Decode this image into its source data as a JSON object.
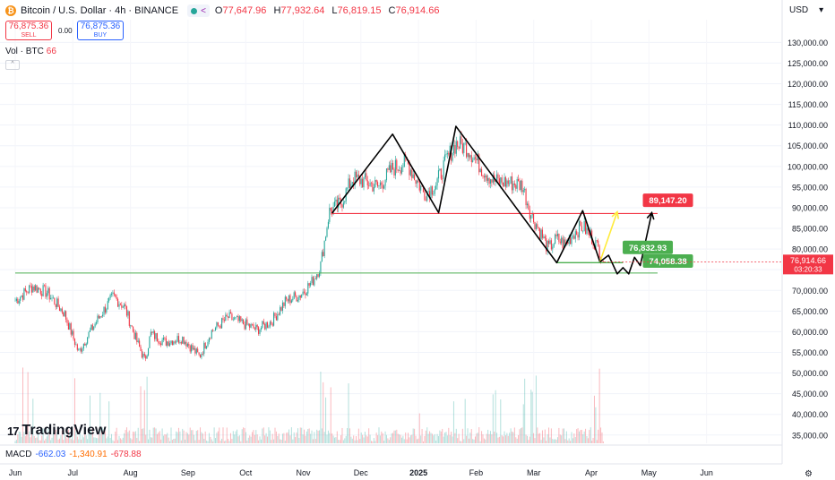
{
  "header": {
    "logo_glyph": "₿",
    "title": "Bitcoin / U.S. Dollar · 4h · BINANCE",
    "share_glyph": "<",
    "ohlc": [
      {
        "k": "O",
        "v": "77,647.96"
      },
      {
        "k": "H",
        "v": "77,932.64"
      },
      {
        "k": "L",
        "v": "76,819.15"
      },
      {
        "k": "C",
        "v": "76,914.66"
      }
    ]
  },
  "trade": {
    "sell_price": "76,875.36",
    "sell_label": "SELL",
    "spread": "0.00",
    "buy_price": "76,875.36",
    "buy_label": "BUY"
  },
  "volume_legend": {
    "label": "Vol · BTC",
    "value": "66",
    "collapse_glyph": "^"
  },
  "currency": {
    "label": "USD",
    "menu_glyph": "▾"
  },
  "macd": {
    "label": "MACD",
    "macd": "-662.03",
    "signal": "-1,340.91",
    "hist": "-678.88"
  },
  "brand": {
    "mark": "17",
    "name": "TradingView"
  },
  "settings_glyph": "⚙",
  "colors": {
    "up": "#26a69a",
    "down": "#f23645",
    "resistance": "#f23645",
    "support": "#4caf50",
    "pattern": "#000000",
    "projection": "#ffeb3b"
  },
  "chart_data": {
    "type": "candlestick",
    "symbol": "BTCUSD",
    "interval": "4h",
    "ylim": [
      33000,
      135500
    ],
    "yticks": [
      "130,000.00",
      "125,000.00",
      "120,000.00",
      "115,000.00",
      "110,000.00",
      "105,000.00",
      "100,000.00",
      "95,000.00",
      "90,000.00",
      "85,000.00",
      "80,000.00",
      "75,000.00",
      "70,000.00",
      "65,000.00",
      "60,000.00",
      "55,000.00",
      "50,000.00",
      "45,000.00",
      "40,000.00",
      "35,000.00"
    ],
    "ytick_values": [
      130000,
      125000,
      120000,
      115000,
      110000,
      105000,
      100000,
      95000,
      90000,
      85000,
      80000,
      75000,
      70000,
      65000,
      60000,
      55000,
      50000,
      45000,
      40000,
      35000
    ],
    "xlim": [
      0,
      13.5
    ],
    "xticks": [
      {
        "label": "Jun",
        "v": 0
      },
      {
        "label": "Jul",
        "v": 1
      },
      {
        "label": "Aug",
        "v": 2
      },
      {
        "label": "Sep",
        "v": 3
      },
      {
        "label": "Oct",
        "v": 4
      },
      {
        "label": "Nov",
        "v": 5
      },
      {
        "label": "Dec",
        "v": 6
      },
      {
        "label": "2025",
        "v": 7
      },
      {
        "label": "Feb",
        "v": 8
      },
      {
        "label": "Mar",
        "v": 9
      },
      {
        "label": "Apr",
        "v": 10
      },
      {
        "label": "May",
        "v": 11
      },
      {
        "label": "Jun",
        "v": 12
      }
    ],
    "anchors": [
      [
        0,
        67500
      ],
      [
        0.3,
        71000
      ],
      [
        0.55,
        69500
      ],
      [
        0.85,
        64500
      ],
      [
        1.1,
        55000
      ],
      [
        1.3,
        60000
      ],
      [
        1.5,
        64500
      ],
      [
        1.7,
        68500
      ],
      [
        1.9,
        66000
      ],
      [
        2.1,
        58000
      ],
      [
        2.25,
        53000
      ],
      [
        2.35,
        59500
      ],
      [
        2.6,
        57500
      ],
      [
        2.9,
        58500
      ],
      [
        3.2,
        54000
      ],
      [
        3.4,
        60000
      ],
      [
        3.7,
        63500
      ],
      [
        3.95,
        62000
      ],
      [
        4.2,
        60500
      ],
      [
        4.45,
        62500
      ],
      [
        4.7,
        67500
      ],
      [
        4.95,
        69000
      ],
      [
        5.15,
        72000
      ],
      [
        5.3,
        76000
      ],
      [
        5.45,
        89000
      ],
      [
        5.65,
        91000
      ],
      [
        5.85,
        97000
      ],
      [
        6.05,
        96500
      ],
      [
        6.3,
        95000
      ],
      [
        6.55,
        99500
      ],
      [
        6.8,
        101000
      ],
      [
        6.95,
        97000
      ],
      [
        7.1,
        93500
      ],
      [
        7.3,
        95500
      ],
      [
        7.5,
        102000
      ],
      [
        7.65,
        105500
      ],
      [
        7.85,
        104500
      ],
      [
        8.1,
        99500
      ],
      [
        8.3,
        96500
      ],
      [
        8.6,
        96000
      ],
      [
        8.8,
        95500
      ],
      [
        8.95,
        88500
      ],
      [
        9.1,
        84500
      ],
      [
        9.25,
        80000
      ],
      [
        9.4,
        82500
      ],
      [
        9.55,
        81000
      ],
      [
        9.7,
        84000
      ],
      [
        9.85,
        85500
      ],
      [
        10.0,
        83000
      ],
      [
        10.15,
        79500
      ],
      [
        10.22,
        76915
      ]
    ],
    "last_price": "76,914.66",
    "countdown": "03:20:33",
    "resistance": {
      "y": 88600,
      "x0": 5.5,
      "x1": 11.15
    },
    "support": {
      "y": 74200,
      "x0": 0,
      "x1": 11.15
    },
    "pattern_path": [
      [
        5.5,
        88700
      ],
      [
        6.55,
        107800
      ],
      [
        7.35,
        88800
      ],
      [
        7.65,
        109700
      ],
      [
        9.4,
        76700
      ],
      [
        9.85,
        89300
      ],
      [
        10.15,
        76900
      ]
    ],
    "target_path": [
      [
        10.15,
        76900
      ],
      [
        10.45,
        89000
      ]
    ],
    "zigzag_path": [
      [
        10.15,
        76900
      ],
      [
        10.3,
        78500
      ],
      [
        10.45,
        74000
      ],
      [
        10.55,
        75500
      ],
      [
        10.65,
        74000
      ],
      [
        10.75,
        78000
      ],
      [
        10.85,
        76000
      ],
      [
        11.05,
        88800
      ]
    ],
    "support_base": {
      "y": 76700,
      "x0": 9.4,
      "x1": 10.55
    },
    "annotations": [
      {
        "text": "89,147.20",
        "x": 11.05,
        "y": 91800,
        "color": "#f23645"
      },
      {
        "text": "76,832.93",
        "x": 10.7,
        "y": 80400,
        "color": "#4caf50"
      },
      {
        "text": "74,058.38",
        "x": 11.05,
        "y": 77100,
        "color": "#4caf50"
      }
    ]
  }
}
